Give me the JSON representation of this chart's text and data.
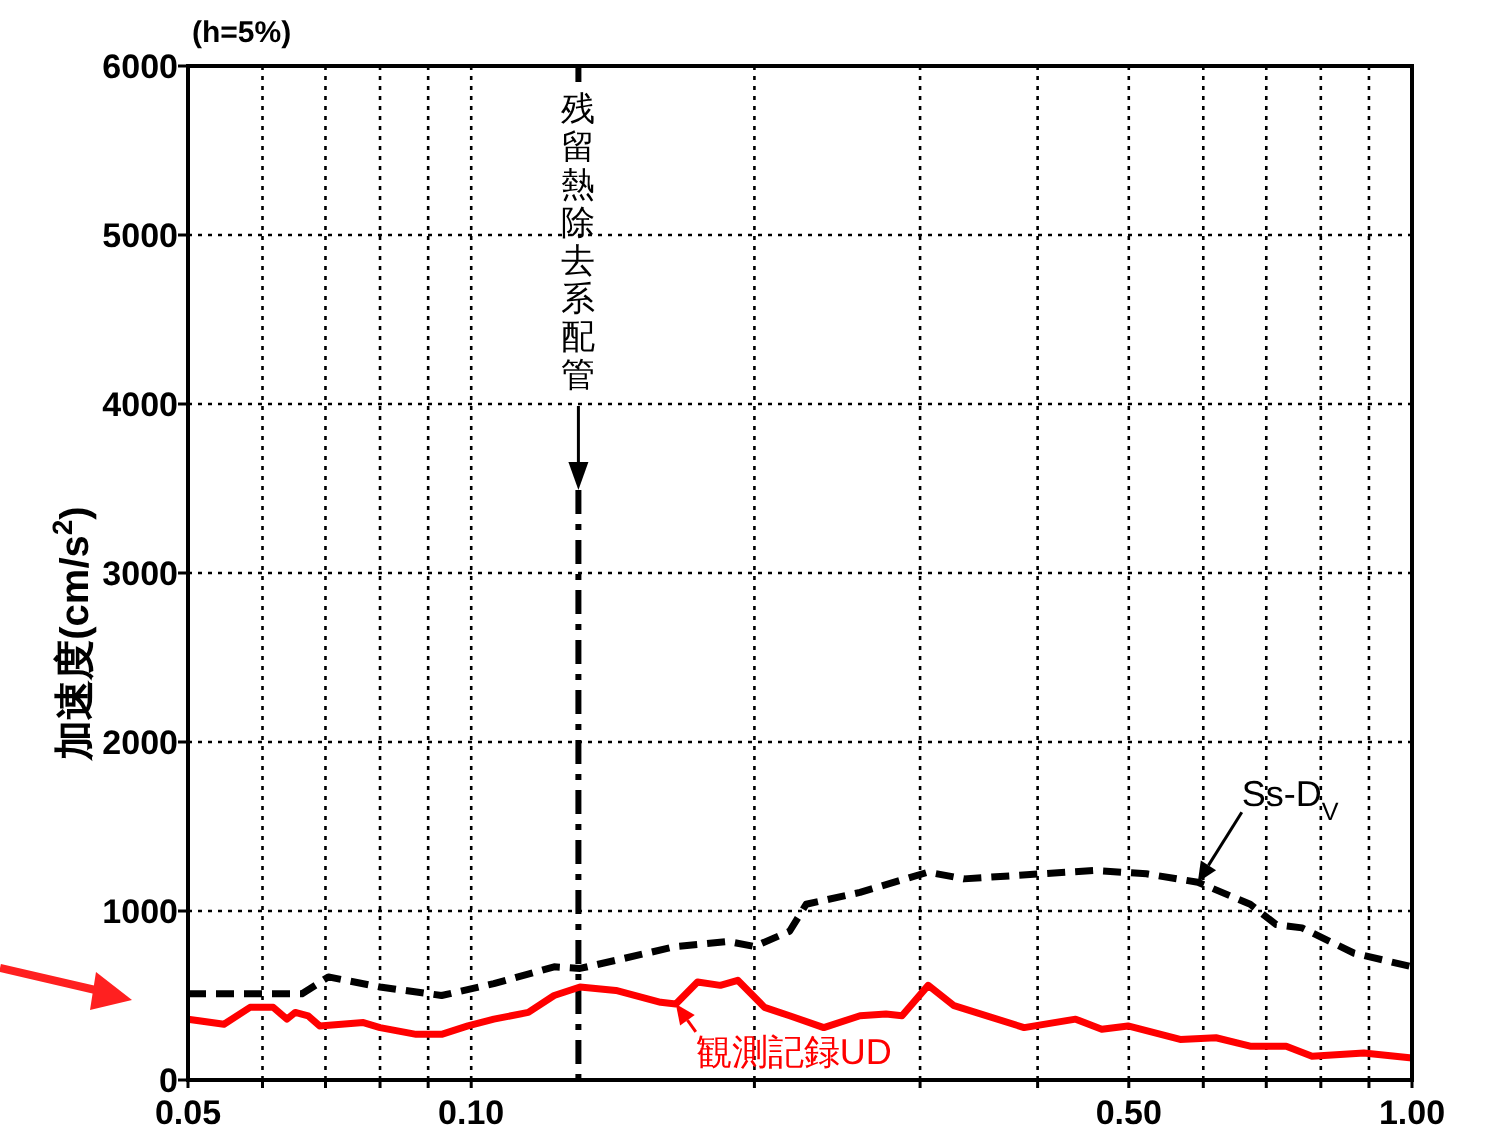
{
  "chart_data": {
    "type": "line",
    "ylabel": "加速度(cm/s$^{2}$)",
    "annotations": [
      "(h=5%)"
    ],
    "log": "x",
    "xlim": [
      0.05,
      1.0
    ],
    "xticks": [
      {
        "value": 0.05,
        "label": "0.05"
      },
      {
        "value": 0.06,
        "label": null
      },
      {
        "value": 0.07,
        "label": null
      },
      {
        "value": 0.08,
        "label": null
      },
      {
        "value": 0.09,
        "label": null
      },
      {
        "value": 0.1,
        "label": "0.10"
      },
      {
        "value": 0.2,
        "label": null
      },
      {
        "value": 0.3,
        "label": null
      },
      {
        "value": 0.4,
        "label": null
      },
      {
        "value": 0.5,
        "label": "0.50"
      },
      {
        "value": 0.6,
        "label": null
      },
      {
        "value": 0.7,
        "label": null
      },
      {
        "value": 0.8,
        "label": null
      },
      {
        "value": 0.9,
        "label": null
      },
      {
        "value": 1.0,
        "label": "1.00"
      }
    ],
    "ylim": [
      0,
      6000
    ],
    "yticks": [
      0,
      1000,
      2000,
      3000,
      4000,
      5000,
      6000
    ],
    "grid": true,
    "marker": "none",
    "ref_lines": [
      {
        "axis": "x",
        "value": 0.13,
        "label": "残留熱除去系配管",
        "color": "#000000",
        "line_style": "dashed"
      }
    ],
    "series": [
      {
        "name": "Ss-D$_{V}$",
        "color": "#000000",
        "line_style": "dashed",
        "x": [
          0.05,
          0.0661,
          0.0705,
          0.08,
          0.093,
          0.1057,
          0.1225,
          0.1305,
          0.165,
          0.1875,
          0.2,
          0.218,
          0.227,
          0.259,
          0.306,
          0.334,
          0.404,
          0.459,
          0.522,
          0.592,
          0.673,
          0.717,
          0.764,
          0.868,
          1.0
        ],
        "values": [
          510,
          510,
          610,
          550,
          500,
          570,
          670,
          660,
          790,
          820,
          790,
          880,
          1040,
          1110,
          1230,
          1190,
          1220,
          1240,
          1220,
          1170,
          1040,
          920,
          900,
          750,
          670
        ]
      },
      {
        "name": "観測記録UD",
        "color": "#ff0000",
        "line_style": "solid",
        "x": [
          0.05,
          0.0546,
          0.0582,
          0.0616,
          0.0637,
          0.065,
          0.0671,
          0.069,
          0.0768,
          0.08,
          0.0874,
          0.093,
          0.0992,
          0.1057,
          0.115,
          0.1225,
          0.1305,
          0.1425,
          0.159,
          0.165,
          0.174,
          0.184,
          0.192,
          0.205,
          0.218,
          0.237,
          0.259,
          0.276,
          0.287,
          0.306,
          0.326,
          0.387,
          0.439,
          0.468,
          0.499,
          0.567,
          0.619,
          0.673,
          0.735,
          0.783,
          0.889,
          1.0
        ],
        "values": [
          360,
          330,
          430,
          430,
          360,
          400,
          380,
          320,
          340,
          310,
          270,
          270,
          320,
          360,
          400,
          500,
          550,
          530,
          460,
          450,
          580,
          560,
          590,
          430,
          380,
          310,
          380,
          390,
          380,
          560,
          440,
          310,
          360,
          300,
          320,
          240,
          250,
          200,
          200,
          140,
          160,
          130
        ]
      }
    ]
  }
}
